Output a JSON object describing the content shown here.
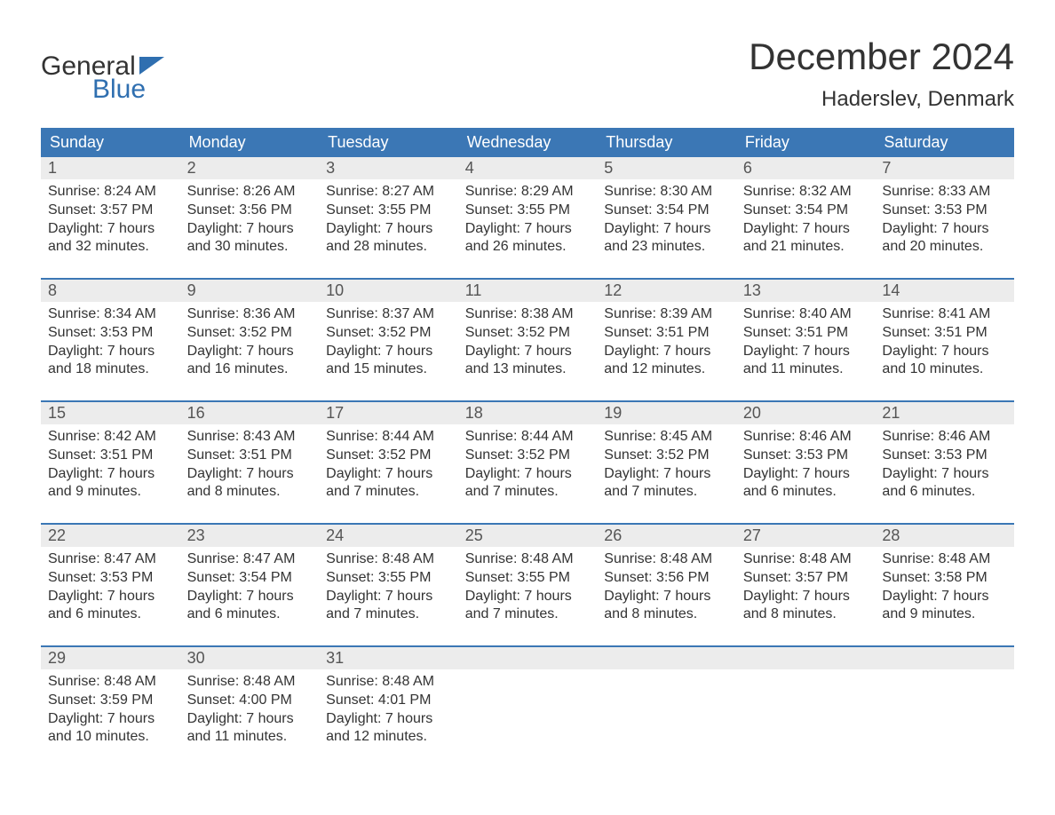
{
  "logo": {
    "text_general": "General",
    "text_blue": "Blue",
    "flag_color": "#2f6fb0"
  },
  "title": "December 2024",
  "location": "Haderslev, Denmark",
  "colors": {
    "header_bg": "#3b77b5",
    "header_text": "#ffffff",
    "daynum_bg": "#ececec",
    "daynum_text": "#555555",
    "body_text": "#333333",
    "week_border": "#3b77b5",
    "background": "#ffffff",
    "logo_blue": "#2f6fb0"
  },
  "weekdays": [
    "Sunday",
    "Monday",
    "Tuesday",
    "Wednesday",
    "Thursday",
    "Friday",
    "Saturday"
  ],
  "weeks": [
    [
      {
        "day": "1",
        "sunrise": "Sunrise: 8:24 AM",
        "sunset": "Sunset: 3:57 PM",
        "daylight": "Daylight: 7 hours and 32 minutes."
      },
      {
        "day": "2",
        "sunrise": "Sunrise: 8:26 AM",
        "sunset": "Sunset: 3:56 PM",
        "daylight": "Daylight: 7 hours and 30 minutes."
      },
      {
        "day": "3",
        "sunrise": "Sunrise: 8:27 AM",
        "sunset": "Sunset: 3:55 PM",
        "daylight": "Daylight: 7 hours and 28 minutes."
      },
      {
        "day": "4",
        "sunrise": "Sunrise: 8:29 AM",
        "sunset": "Sunset: 3:55 PM",
        "daylight": "Daylight: 7 hours and 26 minutes."
      },
      {
        "day": "5",
        "sunrise": "Sunrise: 8:30 AM",
        "sunset": "Sunset: 3:54 PM",
        "daylight": "Daylight: 7 hours and 23 minutes."
      },
      {
        "day": "6",
        "sunrise": "Sunrise: 8:32 AM",
        "sunset": "Sunset: 3:54 PM",
        "daylight": "Daylight: 7 hours and 21 minutes."
      },
      {
        "day": "7",
        "sunrise": "Sunrise: 8:33 AM",
        "sunset": "Sunset: 3:53 PM",
        "daylight": "Daylight: 7 hours and 20 minutes."
      }
    ],
    [
      {
        "day": "8",
        "sunrise": "Sunrise: 8:34 AM",
        "sunset": "Sunset: 3:53 PM",
        "daylight": "Daylight: 7 hours and 18 minutes."
      },
      {
        "day": "9",
        "sunrise": "Sunrise: 8:36 AM",
        "sunset": "Sunset: 3:52 PM",
        "daylight": "Daylight: 7 hours and 16 minutes."
      },
      {
        "day": "10",
        "sunrise": "Sunrise: 8:37 AM",
        "sunset": "Sunset: 3:52 PM",
        "daylight": "Daylight: 7 hours and 15 minutes."
      },
      {
        "day": "11",
        "sunrise": "Sunrise: 8:38 AM",
        "sunset": "Sunset: 3:52 PM",
        "daylight": "Daylight: 7 hours and 13 minutes."
      },
      {
        "day": "12",
        "sunrise": "Sunrise: 8:39 AM",
        "sunset": "Sunset: 3:51 PM",
        "daylight": "Daylight: 7 hours and 12 minutes."
      },
      {
        "day": "13",
        "sunrise": "Sunrise: 8:40 AM",
        "sunset": "Sunset: 3:51 PM",
        "daylight": "Daylight: 7 hours and 11 minutes."
      },
      {
        "day": "14",
        "sunrise": "Sunrise: 8:41 AM",
        "sunset": "Sunset: 3:51 PM",
        "daylight": "Daylight: 7 hours and 10 minutes."
      }
    ],
    [
      {
        "day": "15",
        "sunrise": "Sunrise: 8:42 AM",
        "sunset": "Sunset: 3:51 PM",
        "daylight": "Daylight: 7 hours and 9 minutes."
      },
      {
        "day": "16",
        "sunrise": "Sunrise: 8:43 AM",
        "sunset": "Sunset: 3:51 PM",
        "daylight": "Daylight: 7 hours and 8 minutes."
      },
      {
        "day": "17",
        "sunrise": "Sunrise: 8:44 AM",
        "sunset": "Sunset: 3:52 PM",
        "daylight": "Daylight: 7 hours and 7 minutes."
      },
      {
        "day": "18",
        "sunrise": "Sunrise: 8:44 AM",
        "sunset": "Sunset: 3:52 PM",
        "daylight": "Daylight: 7 hours and 7 minutes."
      },
      {
        "day": "19",
        "sunrise": "Sunrise: 8:45 AM",
        "sunset": "Sunset: 3:52 PM",
        "daylight": "Daylight: 7 hours and 7 minutes."
      },
      {
        "day": "20",
        "sunrise": "Sunrise: 8:46 AM",
        "sunset": "Sunset: 3:53 PM",
        "daylight": "Daylight: 7 hours and 6 minutes."
      },
      {
        "day": "21",
        "sunrise": "Sunrise: 8:46 AM",
        "sunset": "Sunset: 3:53 PM",
        "daylight": "Daylight: 7 hours and 6 minutes."
      }
    ],
    [
      {
        "day": "22",
        "sunrise": "Sunrise: 8:47 AM",
        "sunset": "Sunset: 3:53 PM",
        "daylight": "Daylight: 7 hours and 6 minutes."
      },
      {
        "day": "23",
        "sunrise": "Sunrise: 8:47 AM",
        "sunset": "Sunset: 3:54 PM",
        "daylight": "Daylight: 7 hours and 6 minutes."
      },
      {
        "day": "24",
        "sunrise": "Sunrise: 8:48 AM",
        "sunset": "Sunset: 3:55 PM",
        "daylight": "Daylight: 7 hours and 7 minutes."
      },
      {
        "day": "25",
        "sunrise": "Sunrise: 8:48 AM",
        "sunset": "Sunset: 3:55 PM",
        "daylight": "Daylight: 7 hours and 7 minutes."
      },
      {
        "day": "26",
        "sunrise": "Sunrise: 8:48 AM",
        "sunset": "Sunset: 3:56 PM",
        "daylight": "Daylight: 7 hours and 8 minutes."
      },
      {
        "day": "27",
        "sunrise": "Sunrise: 8:48 AM",
        "sunset": "Sunset: 3:57 PM",
        "daylight": "Daylight: 7 hours and 8 minutes."
      },
      {
        "day": "28",
        "sunrise": "Sunrise: 8:48 AM",
        "sunset": "Sunset: 3:58 PM",
        "daylight": "Daylight: 7 hours and 9 minutes."
      }
    ],
    [
      {
        "day": "29",
        "sunrise": "Sunrise: 8:48 AM",
        "sunset": "Sunset: 3:59 PM",
        "daylight": "Daylight: 7 hours and 10 minutes."
      },
      {
        "day": "30",
        "sunrise": "Sunrise: 8:48 AM",
        "sunset": "Sunset: 4:00 PM",
        "daylight": "Daylight: 7 hours and 11 minutes."
      },
      {
        "day": "31",
        "sunrise": "Sunrise: 8:48 AM",
        "sunset": "Sunset: 4:01 PM",
        "daylight": "Daylight: 7 hours and 12 minutes."
      },
      null,
      null,
      null,
      null
    ]
  ]
}
